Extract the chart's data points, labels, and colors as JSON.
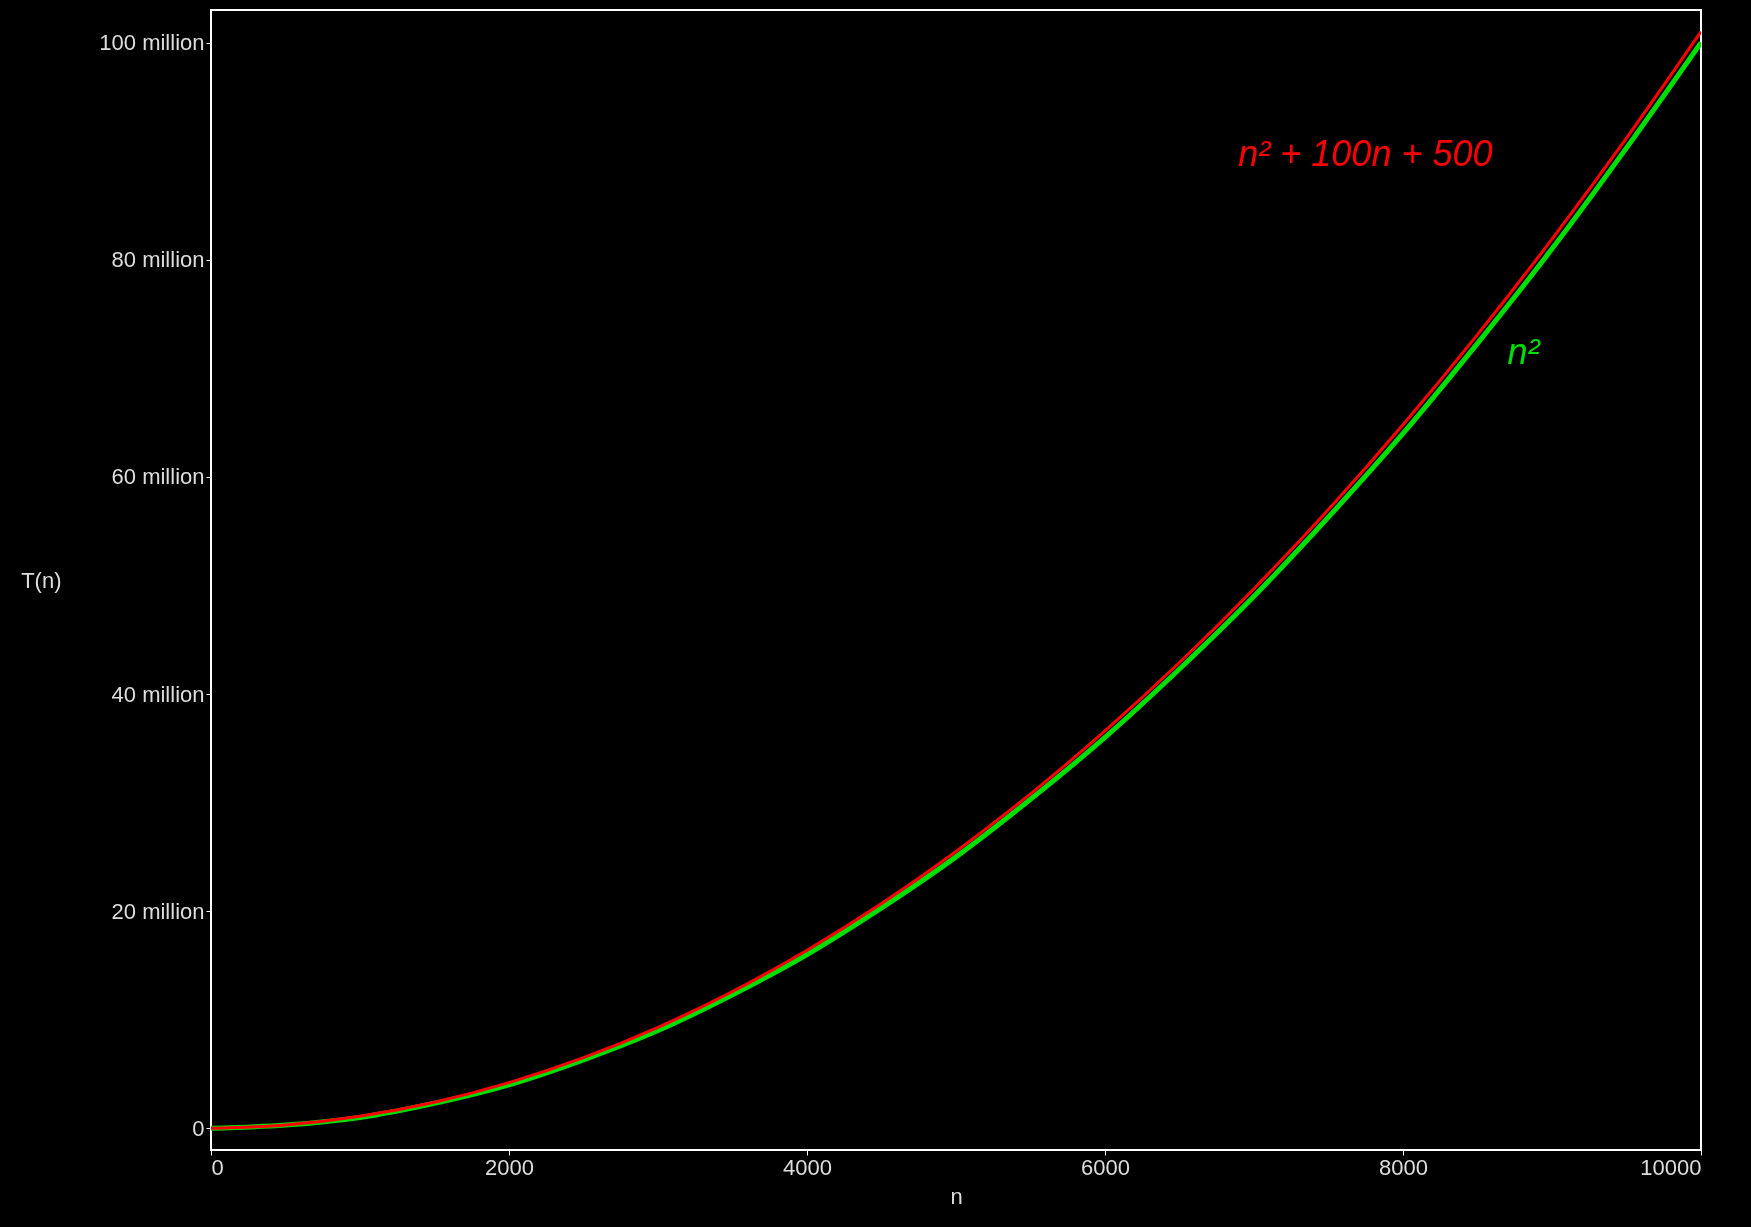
{
  "chart_data": {
    "type": "line",
    "xlabel": "n",
    "ylabel": "T(n)",
    "x": [
      0,
      500,
      1000,
      1500,
      2000,
      2500,
      3000,
      3500,
      4000,
      4500,
      5000,
      5500,
      6000,
      6500,
      7000,
      7500,
      8000,
      8500,
      9000,
      9500,
      10000
    ],
    "series": [
      {
        "name": "n² + 100n + 500",
        "color": "#ff0000",
        "values": [
          0,
          300000,
          1100000,
          2400000,
          4200000,
          6500000,
          9300000,
          12600000,
          16400000,
          20700000,
          25500000,
          30800000,
          36600000,
          42900000,
          49700000,
          57000000,
          64800000,
          73100000,
          81900000,
          91200000,
          101000000
        ]
      },
      {
        "name": "n²",
        "color": "#00e000",
        "values": [
          0,
          300000,
          1000000,
          2300000,
          4000000,
          6300000,
          9000000,
          12300000,
          16000000,
          20300000,
          25000000,
          30300000,
          36000000,
          42300000,
          49000000,
          56300000,
          64000000,
          72300000,
          81000000,
          90300000,
          100000000
        ]
      }
    ],
    "xlim": [
      0,
      10000
    ],
    "xticks": [
      0,
      2000,
      4000,
      6000,
      8000,
      10000
    ],
    "ylim": [
      -2000000,
      103000000
    ],
    "yticks": [
      0,
      {
        "value": 20000000,
        "label": "20 million"
      },
      {
        "value": 40000000,
        "label": "40 million"
      },
      {
        "value": 60000000,
        "label": "60 million"
      },
      {
        "value": 80000000,
        "label": "80 million"
      },
      {
        "value": 100000000,
        "label": "100 million"
      }
    ],
    "grid": false,
    "legend": false,
    "marker": "none",
    "line_style": "solid"
  }
}
